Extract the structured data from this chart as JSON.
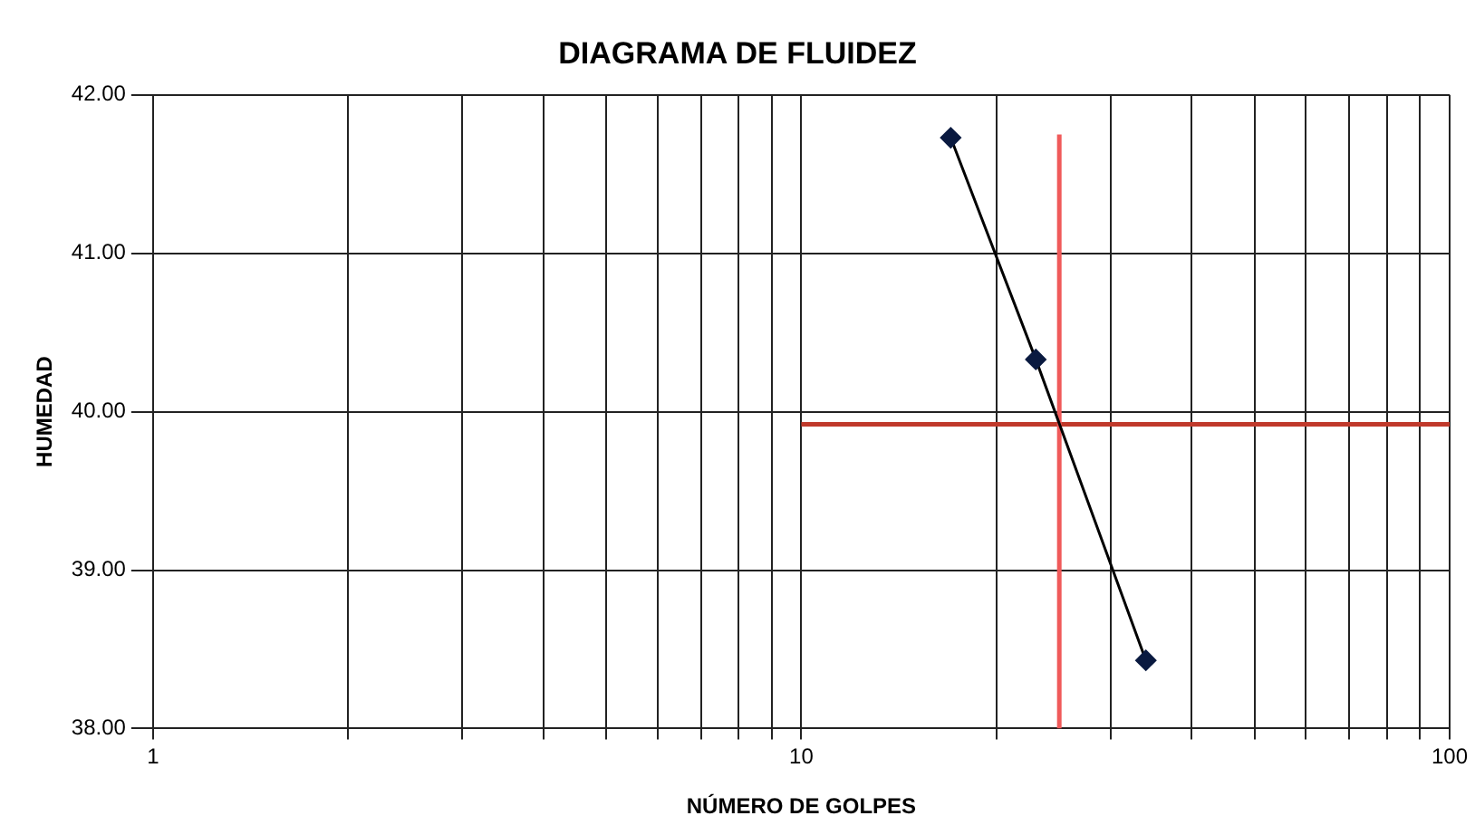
{
  "chart_data": {
    "type": "line",
    "title": "DIAGRAMA DE FLUIDEZ",
    "xlabel": "NÚMERO DE GOLPES",
    "ylabel": "HUMEDAD",
    "log": "x",
    "grid": true,
    "marker": "diamond",
    "line_style": "solid",
    "xlim": [
      1,
      100
    ],
    "ylim": [
      38,
      42
    ],
    "xticks": [
      1,
      {
        "value": 2,
        "label": null
      },
      {
        "value": 3,
        "label": null
      },
      {
        "value": 4,
        "label": null
      },
      {
        "value": 5,
        "label": null
      },
      {
        "value": 6,
        "label": null
      },
      {
        "value": 7,
        "label": null
      },
      {
        "value": 8,
        "label": null
      },
      {
        "value": 9,
        "label": null
      },
      10,
      {
        "value": 20,
        "label": null
      },
      {
        "value": 30,
        "label": null
      },
      {
        "value": 40,
        "label": null
      },
      {
        "value": 50,
        "label": null
      },
      {
        "value": 60,
        "label": null
      },
      {
        "value": 70,
        "label": null
      },
      {
        "value": 80,
        "label": null
      },
      {
        "value": 90,
        "label": null
      },
      100
    ],
    "yticks": [
      {
        "value": 38,
        "label": "38.00"
      },
      {
        "value": 39,
        "label": "39.00"
      },
      {
        "value": 40,
        "label": "40.00"
      },
      {
        "value": 41,
        "label": "41.00"
      },
      {
        "value": 42,
        "label": "42.00"
      }
    ],
    "series": [
      {
        "color": "#0a1a40",
        "x": [
          17,
          23,
          34
        ],
        "values": [
          41.73,
          40.33,
          38.43
        ]
      },
      {
        "color": "#f05a5a",
        "marker": "none",
        "x": [
          25,
          25
        ],
        "values": [
          38,
          41.75
        ]
      },
      {
        "color": "#c0392b",
        "marker": "none",
        "x": [
          10,
          100
        ],
        "values": [
          39.92,
          39.92
        ]
      }
    ]
  }
}
